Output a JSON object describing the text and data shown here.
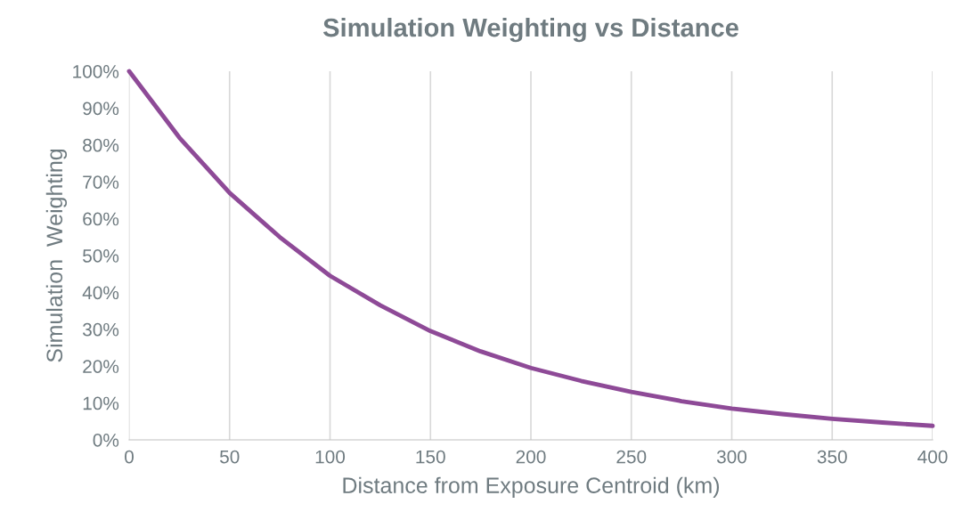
{
  "chart_data": {
    "type": "line",
    "title": "Simulation Weighting vs Distance",
    "xlabel": "Distance from Exposure Centroid (km)",
    "ylabel": "Simulation  Weighting",
    "x": [
      0,
      25,
      50,
      75,
      100,
      125,
      150,
      175,
      200,
      225,
      250,
      275,
      300,
      325,
      350,
      375,
      400
    ],
    "series": [
      {
        "color": "#8e4a97",
        "values": [
          100,
          82,
          67,
          55,
          44.5,
          36.5,
          29.5,
          24,
          19.5,
          16,
          13,
          10.5,
          8.5,
          7,
          5.7,
          4.7,
          3.8
        ]
      }
    ],
    "xlim": [
      0,
      400
    ],
    "xticks": [
      0,
      50,
      100,
      150,
      200,
      250,
      300,
      350,
      400
    ],
    "ylim": [
      0,
      100
    ],
    "yticks": [
      {
        "value": 0,
        "label": "0%"
      },
      {
        "value": 10,
        "label": "10%"
      },
      {
        "value": 20,
        "label": "20%"
      },
      {
        "value": 30,
        "label": "30%"
      },
      {
        "value": 40,
        "label": "40%"
      },
      {
        "value": 50,
        "label": "50%"
      },
      {
        "value": 60,
        "label": "60%"
      },
      {
        "value": 70,
        "label": "70%"
      },
      {
        "value": 80,
        "label": "80%"
      },
      {
        "value": 90,
        "label": "90%"
      },
      {
        "value": 100,
        "label": "100%"
      }
    ],
    "grid": "x",
    "legend": false,
    "marker": "none",
    "line_style": "solid"
  }
}
